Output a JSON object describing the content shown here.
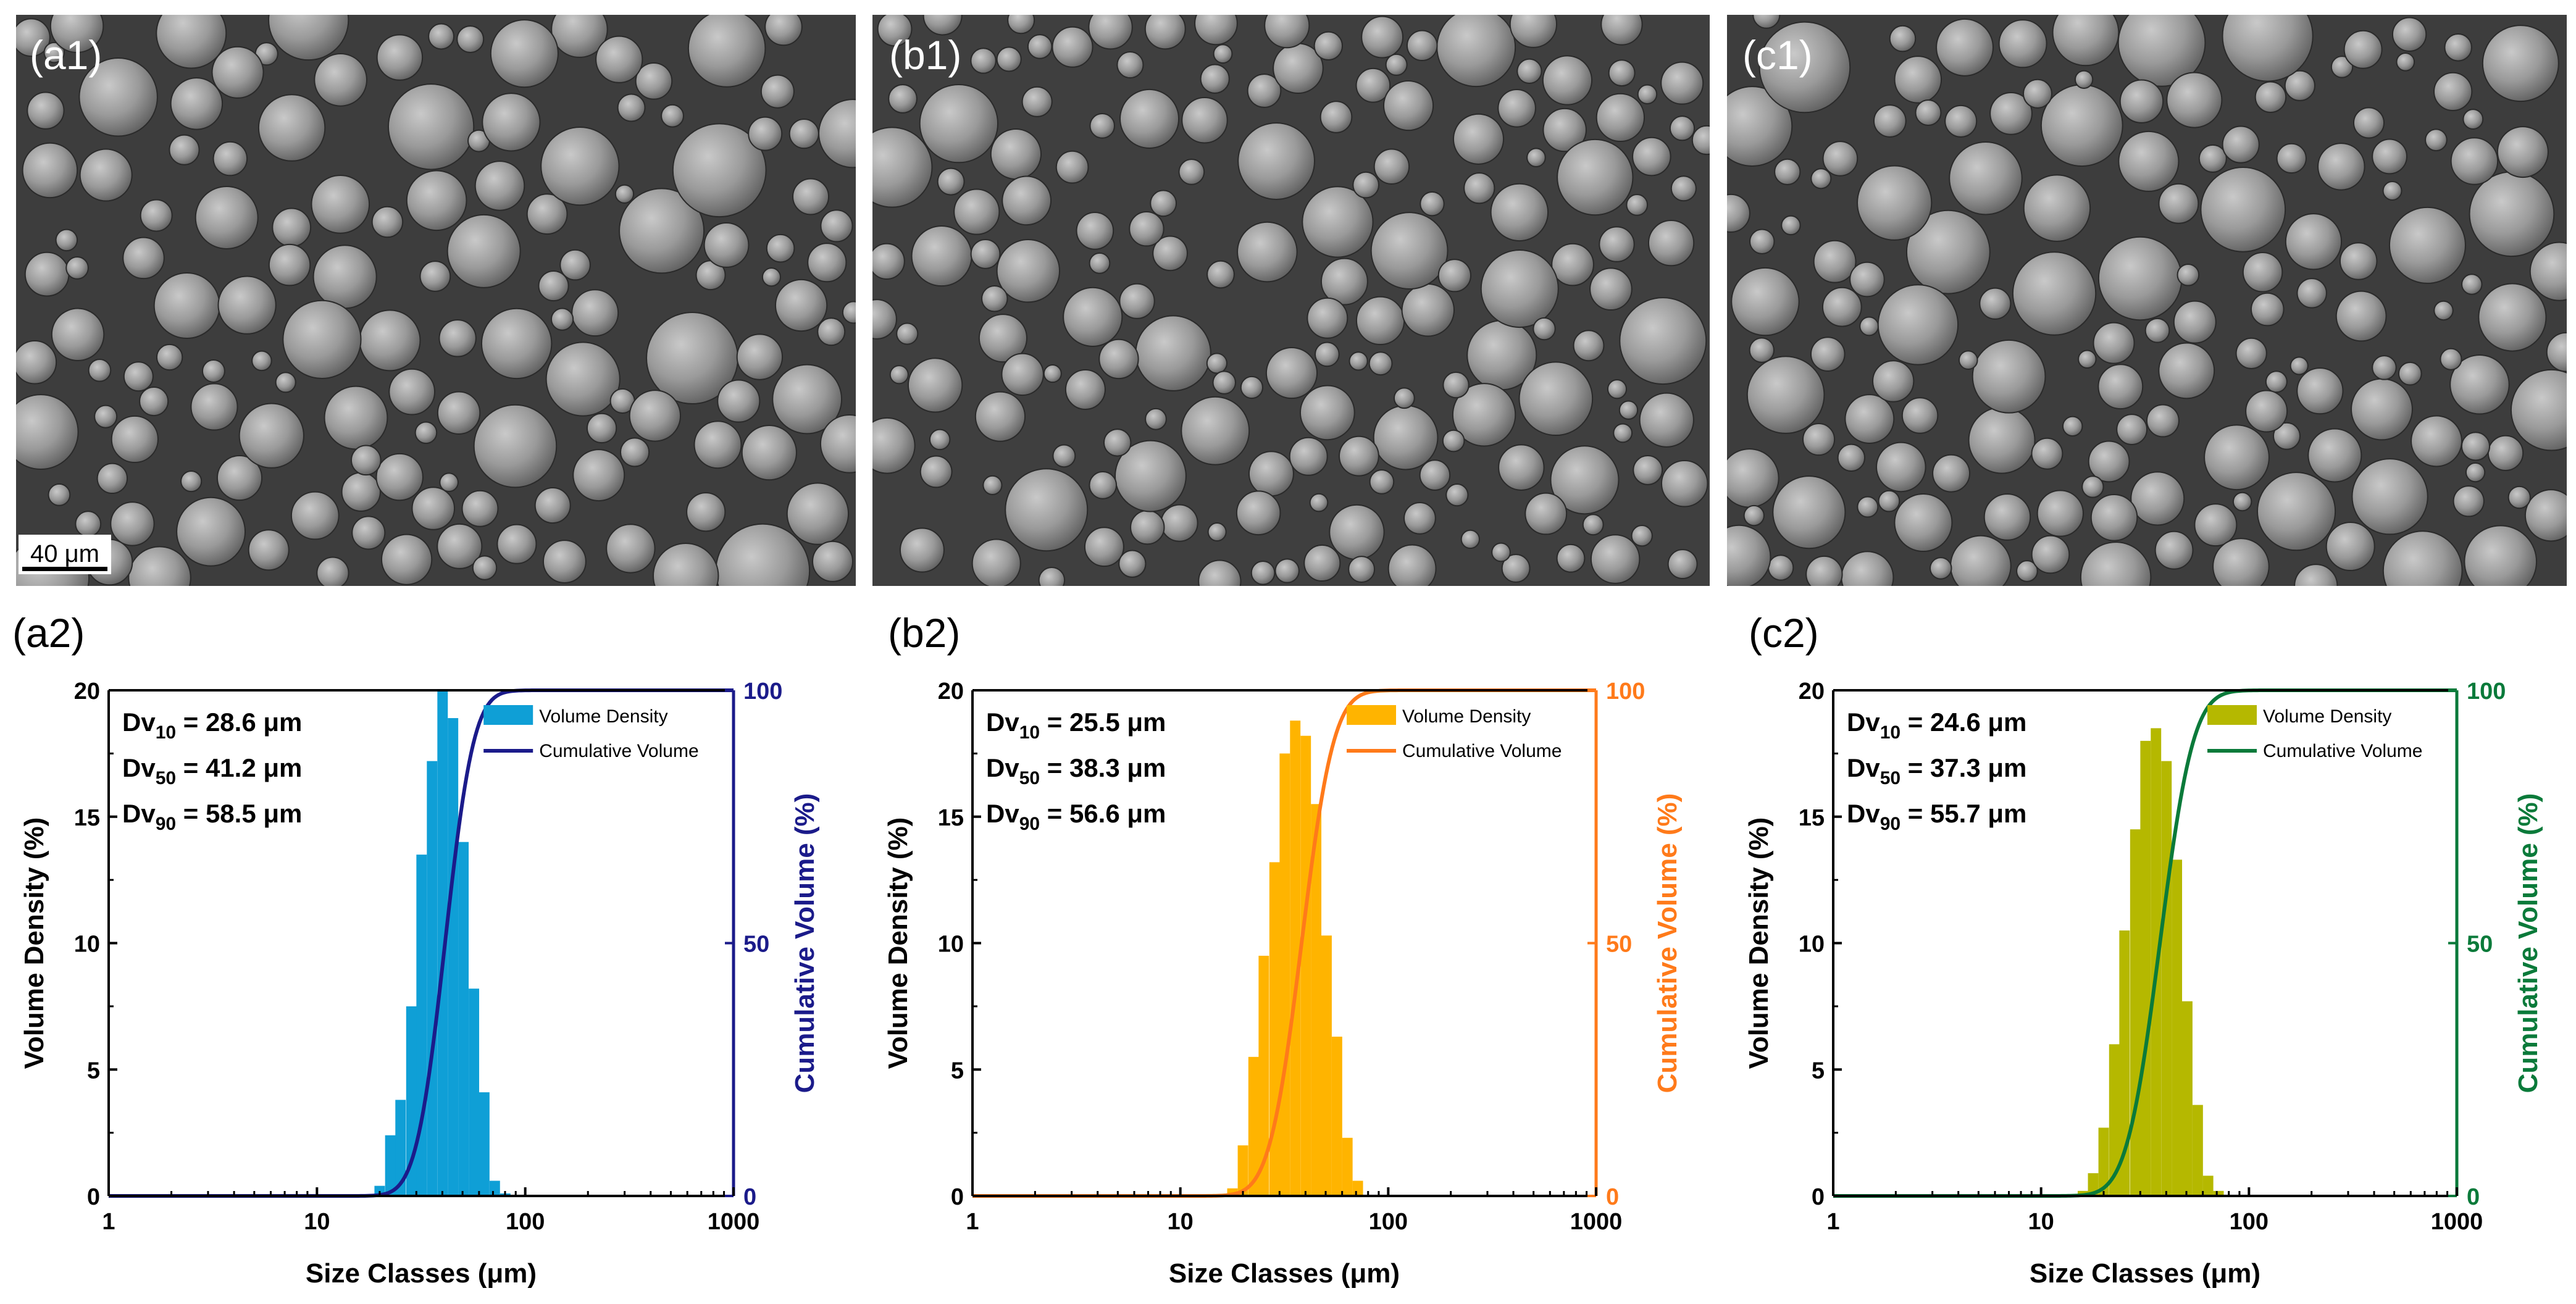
{
  "figure": {
    "photo_panels": [
      {
        "label": "(a1)",
        "scale_bar": "40 μm",
        "image": "SEM micrograph of spherical powder particles"
      },
      {
        "label": "(b1)",
        "scale_bar": "",
        "image": "SEM micrograph of spherical powder particles"
      },
      {
        "label": "(c1)",
        "scale_bar": "",
        "image": "SEM micrograph of spherical powder particles"
      }
    ]
  },
  "chart_data": [
    {
      "type": "bar",
      "panel_label": "(a2)",
      "color": "#0f9fd6",
      "cum_color": "#1b1b8a",
      "xlabel": "Size Classes (μm)",
      "ylabel": "Volume Density (%)",
      "y2label": "Cumulative Volume (%)",
      "xscale": "log",
      "xlim": [
        1,
        1000
      ],
      "ylim": [
        0,
        20
      ],
      "y2lim": [
        0,
        100
      ],
      "xticks": [
        "1",
        "10",
        "100",
        "1000"
      ],
      "yticks": [
        "0",
        "5",
        "10",
        "15",
        "20"
      ],
      "y2ticks": [
        "0",
        "50",
        "100"
      ],
      "legend": {
        "bar": "Volume Density",
        "line": "Cumulative Volume",
        "position": "top-right"
      },
      "stats": [
        {
          "prefix": "Dv",
          "sub": "10",
          "value": " = 28.6 μm"
        },
        {
          "prefix": "Dv",
          "sub": "50",
          "value": " = 41.2 μm"
        },
        {
          "prefix": "Dv",
          "sub": "90",
          "value": " = 58.5 μm"
        }
      ],
      "bins": [
        [
          20.0,
          0.4
        ],
        [
          22.5,
          2.4
        ],
        [
          25.2,
          3.8
        ],
        [
          28.4,
          7.5
        ],
        [
          31.8,
          13.5
        ],
        [
          35.7,
          17.2
        ],
        [
          40.1,
          20.0
        ],
        [
          45.0,
          18.9
        ],
        [
          50.5,
          14.0
        ],
        [
          56.7,
          8.2
        ],
        [
          63.6,
          4.1
        ],
        [
          71.4,
          0.6
        ],
        [
          80.2,
          0.1
        ]
      ],
      "cumulative": {
        "median": 41.2,
        "sigma": 0.25
      }
    },
    {
      "type": "bar",
      "panel_label": "(b2)",
      "color": "#ffb400",
      "cum_color": "#ff7a1a",
      "xlabel": "Size Classes (μm)",
      "ylabel": "Volume Density (%)",
      "y2label": "Cumulative Volume (%)",
      "xscale": "log",
      "xlim": [
        1,
        1000
      ],
      "ylim": [
        0,
        20
      ],
      "y2lim": [
        0,
        100
      ],
      "xticks": [
        "1",
        "10",
        "100",
        "1000"
      ],
      "yticks": [
        "0",
        "5",
        "10",
        "15",
        "20"
      ],
      "y2ticks": [
        "0",
        "50",
        "100"
      ],
      "legend": {
        "bar": "Volume Density",
        "line": "Cumulative Volume",
        "position": "top-right"
      },
      "stats": [
        {
          "prefix": "Dv",
          "sub": "10",
          "value": " = 25.5 μm"
        },
        {
          "prefix": "Dv",
          "sub": "50",
          "value": " = 38.3 μm"
        },
        {
          "prefix": "Dv",
          "sub": "90",
          "value": " = 56.6 μm"
        }
      ],
      "bins": [
        [
          17.8,
          0.3
        ],
        [
          20.0,
          2.0
        ],
        [
          22.5,
          5.5
        ],
        [
          25.2,
          9.5
        ],
        [
          28.4,
          13.2
        ],
        [
          31.8,
          17.5
        ],
        [
          35.7,
          18.8
        ],
        [
          40.1,
          18.2
        ],
        [
          45.0,
          15.5
        ],
        [
          50.5,
          10.3
        ],
        [
          56.7,
          6.3
        ],
        [
          63.6,
          2.3
        ],
        [
          71.4,
          0.6
        ]
      ],
      "cumulative": {
        "median": 38.3,
        "sigma": 0.28
      }
    },
    {
      "type": "bar",
      "panel_label": "(c2)",
      "color": "#b5b800",
      "cum_color": "#0a7a3a",
      "xlabel": "Size Classes (μm)",
      "ylabel": "Volume Density (%)",
      "y2label": "Cumulative Volume (%)",
      "xscale": "log",
      "xlim": [
        1,
        1000
      ],
      "ylim": [
        0,
        20
      ],
      "y2lim": [
        0,
        100
      ],
      "xticks": [
        "1",
        "10",
        "100",
        "1000"
      ],
      "yticks": [
        "0",
        "5",
        "10",
        "15",
        "20"
      ],
      "y2ticks": [
        "0",
        "50",
        "100"
      ],
      "legend": {
        "bar": "Volume Density",
        "line": "Cumulative Volume",
        "position": "top-right"
      },
      "stats": [
        {
          "prefix": "Dv",
          "sub": "10",
          "value": " = 24.6 μm"
        },
        {
          "prefix": "Dv",
          "sub": "50",
          "value": " = 37.3 μm"
        },
        {
          "prefix": "Dv",
          "sub": "90",
          "value": " = 55.7 μm"
        }
      ],
      "bins": [
        [
          15.9,
          0.2
        ],
        [
          17.8,
          0.9
        ],
        [
          20.0,
          2.7
        ],
        [
          22.5,
          6.0
        ],
        [
          25.2,
          10.5
        ],
        [
          28.4,
          14.5
        ],
        [
          31.8,
          18.0
        ],
        [
          35.7,
          18.5
        ],
        [
          40.1,
          17.2
        ],
        [
          45.0,
          13.3
        ],
        [
          50.5,
          7.7
        ],
        [
          56.7,
          3.6
        ],
        [
          63.6,
          0.8
        ],
        [
          71.4,
          0.2
        ]
      ],
      "cumulative": {
        "median": 37.3,
        "sigma": 0.29
      }
    }
  ]
}
